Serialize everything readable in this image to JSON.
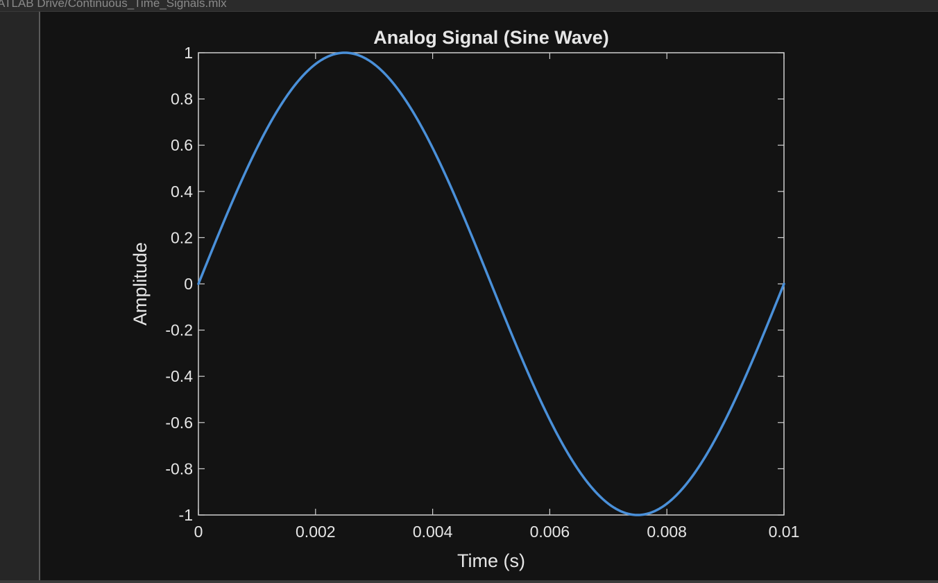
{
  "window": {
    "file_path": "ATLAB Drive/Continuous_Time_Signals.mlx"
  },
  "colors": {
    "background": "#131313",
    "axes": "#d0d0d0",
    "text": "#e6e6e6",
    "line": "#4a90d9"
  },
  "chart_data": {
    "type": "line",
    "title": "Analog Signal (Sine Wave)",
    "xlabel": "Time (s)",
    "ylabel": "Amplitude",
    "xlim": [
      0,
      0.01
    ],
    "ylim": [
      -1,
      1
    ],
    "xticks": [
      0,
      0.002,
      0.004,
      0.006,
      0.008,
      0.01
    ],
    "xtick_labels": [
      "0",
      "0.002",
      "0.004",
      "0.006",
      "0.008",
      "0.01"
    ],
    "yticks": [
      1,
      0.8,
      0.6,
      0.4,
      0.2,
      0,
      -0.2,
      -0.4,
      -0.6,
      -0.8,
      -1
    ],
    "ytick_labels": [
      "1",
      "0.8",
      "0.6",
      "0.4",
      "0.2",
      "0",
      "-0.2",
      "-0.4",
      "-0.6",
      "-0.8",
      "-1"
    ],
    "grid": false,
    "series": [
      {
        "function": "sin(2*pi*100*t)",
        "x": [
          0,
          0.0005,
          0.001,
          0.0015,
          0.002,
          0.0025,
          0.003,
          0.0035,
          0.004,
          0.0045,
          0.005,
          0.0055,
          0.006,
          0.0065,
          0.007,
          0.0075,
          0.008,
          0.0085,
          0.009,
          0.0095,
          0.01
        ],
        "values": [
          0,
          0.309,
          0.588,
          0.809,
          0.951,
          1,
          0.951,
          0.809,
          0.588,
          0.309,
          0,
          -0.309,
          -0.588,
          -0.809,
          -0.951,
          -1,
          -0.951,
          -0.809,
          -0.588,
          -0.309,
          0
        ]
      }
    ]
  }
}
